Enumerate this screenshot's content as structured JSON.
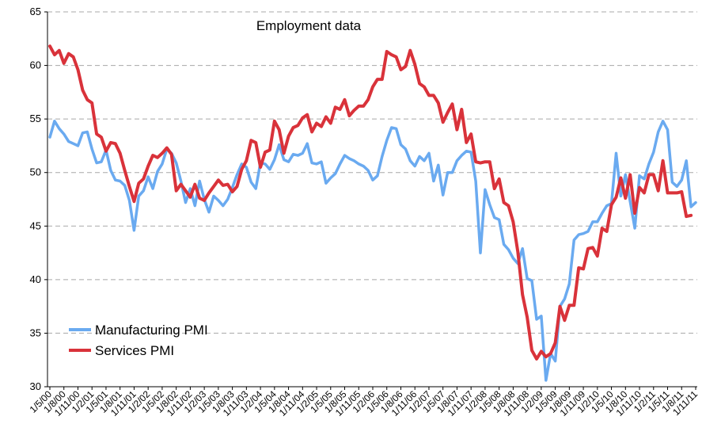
{
  "chart_data": {
    "type": "line",
    "title": "Employment data",
    "xlabel": "",
    "ylabel": "",
    "ylim": [
      30,
      65
    ],
    "yticks": [
      30,
      35,
      40,
      45,
      50,
      55,
      60,
      65
    ],
    "grid": "horizontal dashed",
    "legend_position": "bottom-left",
    "tick_labels": [
      "1/5/00",
      "1/8/00",
      "1/11/00",
      "1/2/01",
      "1/5/01",
      "1/8/01",
      "1/11/01",
      "1/2/02",
      "1/5/02",
      "1/8/02",
      "1/11/02",
      "1/2/03",
      "1/5/03",
      "1/8/03",
      "1/11/03",
      "1/2/04",
      "1/5/04",
      "1/8/04",
      "1/11/04",
      "1/2/05",
      "1/5/05",
      "1/8/05",
      "1/11/05",
      "1/2/06",
      "1/5/06",
      "1/8/06",
      "1/11/06",
      "1/2/07",
      "1/5/07",
      "1/8/07",
      "1/11/07",
      "1/2/08",
      "1/5/08",
      "1/8/08",
      "1/11/08",
      "1/2/09",
      "1/5/09",
      "1/8/09",
      "1/11/09",
      "1/2/10",
      "1/5/10",
      "1/8/10",
      "1/11/10",
      "1/2/11",
      "1/5/11",
      "1/8/11",
      "1/11/11"
    ],
    "series": [
      {
        "name": "Manufacturing PMI",
        "color": "#6aaaf0",
        "values": [
          53.3,
          54.8,
          54.1,
          53.6,
          52.9,
          52.7,
          52.5,
          53.7,
          53.8,
          52.2,
          50.9,
          51.0,
          52.1,
          50.2,
          49.3,
          49.2,
          48.8,
          47.4,
          44.6,
          47.8,
          48.3,
          49.6,
          48.5,
          50.1,
          50.8,
          52.2,
          51.8,
          50.9,
          49.2,
          47.2,
          48.5,
          46.9,
          49.2,
          47.5,
          46.3,
          47.8,
          47.4,
          46.9,
          47.5,
          48.6,
          49.8,
          50.8,
          50.5,
          49.1,
          48.5,
          50.9,
          50.8,
          50.3,
          51.2,
          52.6,
          51.2,
          51.0,
          51.7,
          51.6,
          51.8,
          52.7,
          50.9,
          50.8,
          51.0,
          49.0,
          49.5,
          49.9,
          50.8,
          51.6,
          51.3,
          51.1,
          50.8,
          50.6,
          50.2,
          49.3,
          49.7,
          51.5,
          53.0,
          54.2,
          54.1,
          52.6,
          52.2,
          51.1,
          50.6,
          51.5,
          51.1,
          51.8,
          49.2,
          50.7,
          47.9,
          50.0,
          50.0,
          51.1,
          51.6,
          52.0,
          51.9,
          49.2,
          42.5,
          48.4,
          47.0,
          45.8,
          45.6,
          43.3,
          42.8,
          42.0,
          41.5,
          42.9,
          40.1,
          39.9,
          36.3,
          36.6,
          30.6,
          33.1,
          32.4,
          37.5,
          38.2,
          39.6,
          43.7,
          44.2,
          44.3,
          44.5,
          45.4,
          45.4,
          46.2,
          46.9,
          47.1,
          51.8,
          47.8,
          49.8,
          47.3,
          44.8,
          49.7,
          49.4,
          50.8,
          51.9,
          53.8,
          54.8,
          54.0,
          49.1,
          48.7,
          49.3,
          51.1,
          46.8,
          47.2
        ]
      },
      {
        "name": "Services PMI",
        "color": "#d9323a",
        "values": [
          61.8,
          61.0,
          61.4,
          60.2,
          61.1,
          60.8,
          59.6,
          57.7,
          56.8,
          56.5,
          53.6,
          53.3,
          52.0,
          52.8,
          52.7,
          51.8,
          50.2,
          48.7,
          47.3,
          49.0,
          49.4,
          50.6,
          51.6,
          51.4,
          51.8,
          52.3,
          51.7,
          48.3,
          48.9,
          48.3,
          47.7,
          48.9,
          47.6,
          47.4,
          48.1,
          48.7,
          49.3,
          48.8,
          48.9,
          48.2,
          48.7,
          50.3,
          51.1,
          53.0,
          52.8,
          50.5,
          51.9,
          52.1,
          54.8,
          54.0,
          51.8,
          53.4,
          54.2,
          54.4,
          55.1,
          55.4,
          53.8,
          54.6,
          54.3,
          55.2,
          54.6,
          56.1,
          55.9,
          56.8,
          55.3,
          55.8,
          56.2,
          56.2,
          56.8,
          58.0,
          58.7,
          58.7,
          61.3,
          61.0,
          60.8,
          59.6,
          59.9,
          61.4,
          60.1,
          58.3,
          58.0,
          57.2,
          57.2,
          56.5,
          54.7,
          55.6,
          56.4,
          54.0,
          55.9,
          52.8,
          53.6,
          51.0,
          50.9,
          51.0,
          51.0,
          48.5,
          49.4,
          47.2,
          46.9,
          45.4,
          42.6,
          38.6,
          36.5,
          33.4,
          32.6,
          33.3,
          32.8,
          33.1,
          34.1,
          37.5,
          36.2,
          37.6,
          37.6,
          41.1,
          41.0,
          42.9,
          43.0,
          42.2,
          44.8,
          44.5,
          47.0,
          47.7,
          49.5,
          47.6,
          49.8,
          46.2,
          48.6,
          48.1,
          49.8,
          49.8,
          48.3,
          51.1,
          48.1,
          48.1,
          48.1,
          48.2,
          45.9,
          46.0
        ]
      }
    ]
  },
  "legend": {
    "items": [
      {
        "label": "Manufacturing PMI"
      },
      {
        "label": "Services PMI"
      }
    ]
  }
}
